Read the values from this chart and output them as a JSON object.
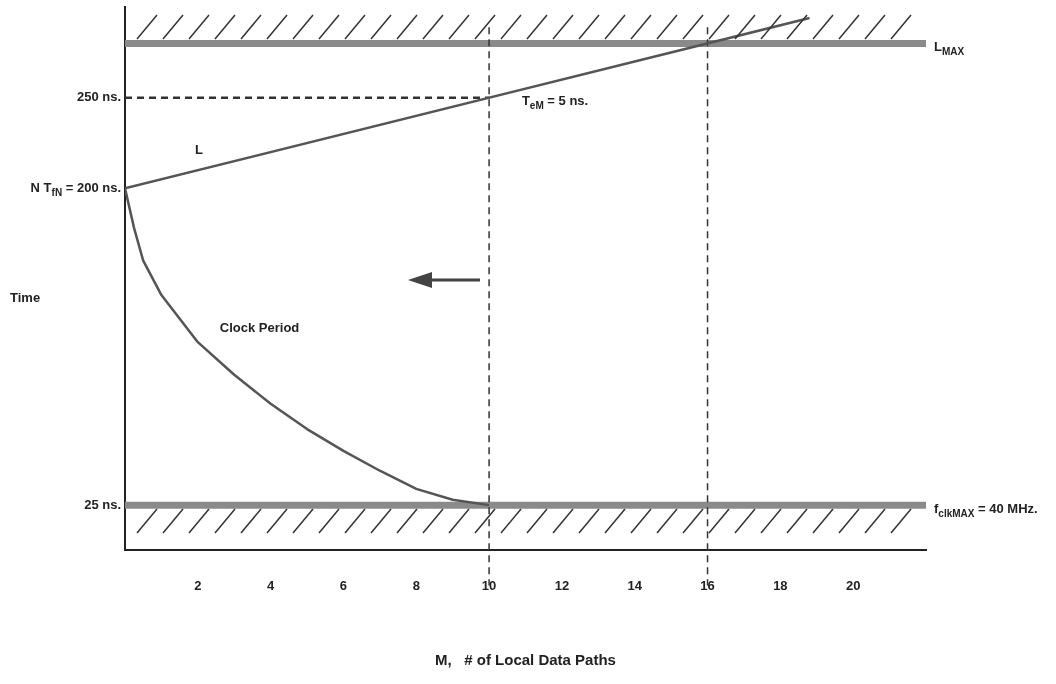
{
  "chart_data": {
    "type": "line",
    "xlabel": "M,   # of Local Data Paths",
    "ylabel": "Time",
    "xlim": [
      0,
      22
    ],
    "xticks": [
      2,
      4,
      6,
      8,
      10,
      12,
      14,
      16,
      18,
      20
    ],
    "ylim": [
      0,
      300
    ],
    "yticks": [
      {
        "value": 25,
        "label": "25 ns."
      },
      {
        "value": 200,
        "label": "N T$_{fN}$ = 200 ns."
      },
      {
        "value": 250,
        "label": "250 ns."
      }
    ],
    "series": [
      {
        "name": "L",
        "color": "#555555",
        "x": [
          0,
          18.8
        ],
        "values": [
          200,
          294
        ]
      },
      {
        "name": "Clock Period",
        "color": "#555555",
        "x": [
          0,
          0.25,
          0.5,
          1,
          2,
          3,
          4,
          5,
          6,
          7,
          8,
          9,
          10
        ],
        "values": [
          200,
          178,
          160,
          141,
          115,
          97,
          81,
          67,
          55,
          44,
          34,
          28,
          25
        ]
      },
      {
        "color": "#333333",
        "line_style": "dashed",
        "x": [
          0,
          10
        ],
        "values": [
          250,
          250
        ]
      }
    ],
    "ref_lines": [
      {
        "axis": "y",
        "value": 280,
        "label": "L$_{MAX}$",
        "color": "#8a8a8a"
      },
      {
        "axis": "y",
        "value": 25,
        "color": "#8a8a8a"
      },
      {
        "axis": "x",
        "value": 10,
        "color": "#333333",
        "line_style": "dashed"
      },
      {
        "axis": "x",
        "value": 16,
        "color": "#333333",
        "line_style": "dashed"
      }
    ],
    "annotations": [
      {
        "text": "T$_{eM}$ = 5 ns.",
        "x": 12,
        "y": 260
      },
      {
        "text": "f$_{clk}$$_{MAX}$ = 40 MHz.",
        "x": 22,
        "y": 25
      }
    ],
    "grid": false,
    "legend": false,
    "marker": "none"
  }
}
